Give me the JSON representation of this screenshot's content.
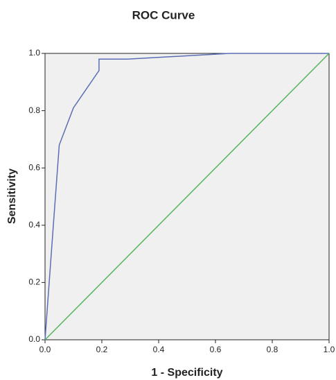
{
  "chart_data": {
    "type": "line",
    "title": "ROC Curve",
    "x_label": "1 - Specificity",
    "y_label": "Sensitivity",
    "xlim": [
      0,
      1
    ],
    "ylim": [
      0,
      1
    ],
    "xticks": [
      {
        "value": 0,
        "label": "0.0"
      },
      0.2,
      0.4,
      0.6,
      0.8,
      {
        "value": 1,
        "label": "1.0"
      }
    ],
    "yticks": [
      {
        "value": 0,
        "label": "0.0"
      },
      0.2,
      0.4,
      0.6,
      0.8,
      {
        "value": 1,
        "label": "1.0"
      }
    ],
    "series": [
      {
        "color": "#5a6db4",
        "x": [
          0,
          0.03,
          0.05,
          0.1,
          0.19,
          0.19,
          0.29,
          0.65,
          1
        ],
        "values": [
          0,
          0.41,
          0.68,
          0.81,
          0.94,
          0.98,
          0.98,
          1,
          1
        ]
      },
      {
        "color": "#55b45a",
        "x": [
          0,
          1
        ],
        "values": [
          0,
          1
        ]
      }
    ]
  }
}
